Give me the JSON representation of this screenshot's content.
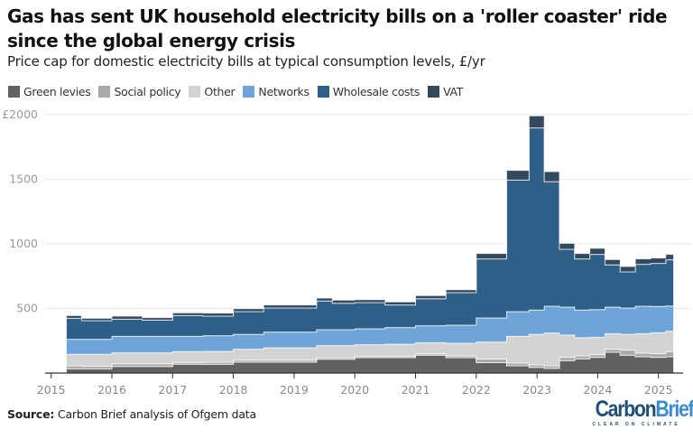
{
  "title": "Gas has sent UK household electricity bills on a 'roller coaster' ride since the global energy crisis",
  "subtitle": "Price cap for domestic electricity bills at typical consumption levels, £/yr",
  "source_label": "Source:",
  "source_text": " Carbon Brief analysis of Ofgem data",
  "logo": {
    "part1": "Carbon",
    "part2": "Brief",
    "tagline": "CLEAR ON CLIMATE"
  },
  "chart_data": {
    "type": "area",
    "stacked": true,
    "step": true,
    "title": "Gas has sent UK household electricity bills on a 'roller coaster' ride since the global energy crisis",
    "ylabel": "£/yr",
    "ylim": [
      0,
      2000
    ],
    "xlim": [
      2014.85,
      2025.45
    ],
    "yticks": [
      {
        "value": 500,
        "label": "500"
      },
      {
        "value": 1000,
        "label": "1000"
      },
      {
        "value": 1500,
        "label": "1500"
      },
      {
        "value": 2000,
        "label": "£2000"
      }
    ],
    "xticks": [
      2015,
      2016,
      2017,
      2018,
      2019,
      2020,
      2021,
      2022,
      2023,
      2024,
      2025
    ],
    "grid": true,
    "legend_position": "top-left",
    "period_starts": [
      2015.25,
      2015.5,
      2016,
      2016.5,
      2017,
      2017.5,
      2018,
      2018.5,
      2019.37,
      2019.63,
      2020,
      2020.5,
      2021,
      2021.5,
      2022,
      2022.5,
      2022.87,
      2023.12,
      2023.37,
      2023.62,
      2023.87,
      2024.12,
      2024.37,
      2024.62,
      2024.87,
      2025.12
    ],
    "period_end": 2025.25,
    "series": [
      {
        "name": "Green levies",
        "color": "#616161",
        "values": [
          33,
          33,
          51,
          51,
          68,
          68,
          84,
          84,
          107,
          107,
          119,
          119,
          138,
          119,
          80,
          56,
          44,
          37,
          96,
          110,
          121,
          161,
          138,
          126,
          121,
          126
        ]
      },
      {
        "name": "Social policy",
        "color": "#a9a9a9",
        "values": [
          23,
          20,
          21,
          21,
          14,
          16,
          16,
          16,
          12,
          12,
          11,
          11,
          11,
          14,
          28,
          21,
          19,
          19,
          25,
          23,
          21,
          23,
          39,
          28,
          28,
          40
        ]
      },
      {
        "name": "Other",
        "color": "#d3d3d3",
        "values": [
          89,
          92,
          84,
          84,
          84,
          84,
          84,
          96,
          93,
          93,
          89,
          94,
          86,
          98,
          132,
          207,
          237,
          254,
          173,
          140,
          135,
          121,
          123,
          151,
          163,
          158
        ]
      },
      {
        "name": "Networks",
        "color": "#6ea4d7",
        "values": [
          116,
          116,
          128,
          128,
          118,
          121,
          116,
          121,
          123,
          123,
          123,
          128,
          131,
          139,
          186,
          191,
          187,
          207,
          216,
          214,
          214,
          205,
          203,
          212,
          203,
          195
        ]
      },
      {
        "name": "Wholesale costs",
        "color": "#2e5f88",
        "values": [
          163,
          144,
          133,
          126,
          161,
          151,
          175,
          186,
          222,
          205,
          203,
          175,
          209,
          252,
          457,
          1018,
          1409,
          964,
          447,
          396,
          427,
          327,
          280,
          324,
          333,
          357
        ]
      },
      {
        "name": "VAT",
        "color": "#34495e",
        "values": [
          21,
          19,
          23,
          19,
          21,
          24,
          23,
          24,
          23,
          24,
          23,
          23,
          24,
          23,
          42,
          75,
          94,
          77,
          47,
          42,
          47,
          41,
          42,
          42,
          42,
          42
        ]
      }
    ]
  }
}
